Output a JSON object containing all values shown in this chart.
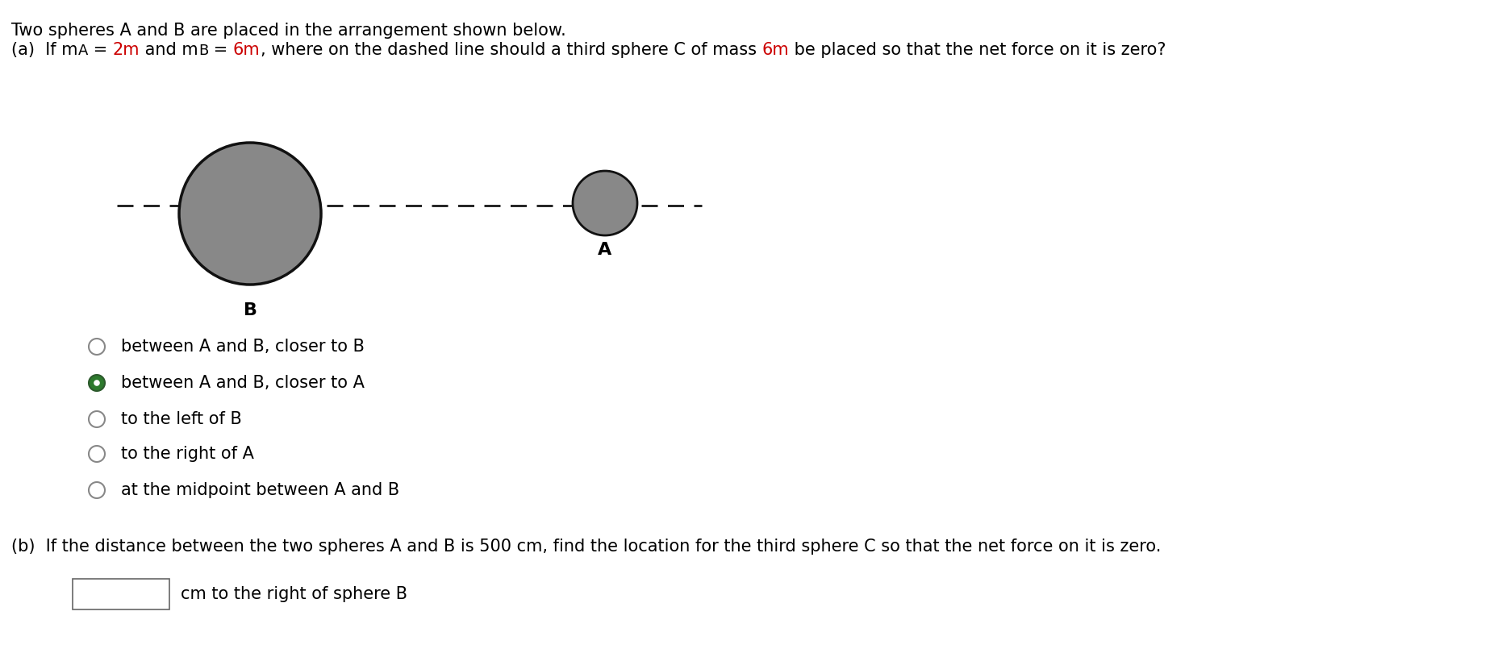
{
  "title_text": "Two spheres A and B are placed in the arrangement shown below.",
  "red_color": "#cc0000",
  "black_color": "#000000",
  "dark_gray": "#333333",
  "sphere_color": "#888888",
  "sphere_edge_color": "#111111",
  "bg_color": "#ffffff",
  "font_size_main": 15,
  "options": [
    {
      "text": "between A and B, closer to B",
      "selected": false
    },
    {
      "text": "between A and B, closer to A",
      "selected": true
    },
    {
      "text": "to the left of B",
      "selected": false
    },
    {
      "text": "to the right of A",
      "selected": false
    },
    {
      "text": "at the midpoint between A and B",
      "selected": false
    }
  ],
  "radio_selected_fill": "#2d7a2d",
  "radio_unselected_fill": "#ffffff",
  "radio_edge_color": "#888888",
  "part_b_text": "(b)  If the distance between the two spheres A and B is 500 cm, find the location for the third sphere C so that the net force on it is zero.",
  "input_label": "cm to the right of sphere B"
}
